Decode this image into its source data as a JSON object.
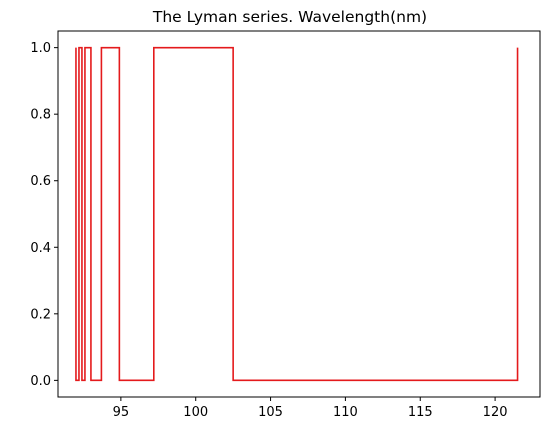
{
  "chart_data": {
    "type": "line",
    "title": "The Lyman series. Wavelength(nm)",
    "xlabel": "",
    "ylabel": "",
    "xlim": [
      90.8,
      123.0
    ],
    "ylim": [
      -0.05,
      1.05
    ],
    "x_ticks": [
      95,
      100,
      105,
      110,
      115,
      120
    ],
    "y_ticks": [
      0.0,
      0.2,
      0.4,
      0.6,
      0.8,
      1.0
    ],
    "x_tick_labels": [
      "95",
      "100",
      "105",
      "110",
      "115",
      "120"
    ],
    "y_tick_labels": [
      "0.0",
      "0.2",
      "0.4",
      "0.6",
      "0.8",
      "1.0"
    ],
    "grid": false,
    "legend": "none",
    "series": [
      {
        "x": [
          92.0,
          92.0,
          92.2,
          92.2,
          92.4,
          92.4,
          92.6,
          92.6,
          93.0,
          93.0,
          93.7,
          93.7,
          94.9,
          94.9,
          97.2,
          97.2,
          102.5,
          102.5,
          121.5,
          121.5
        ],
        "y": [
          1,
          0,
          0,
          1,
          1,
          0,
          0,
          1,
          1,
          0,
          0,
          1,
          1,
          0,
          0,
          1,
          1,
          0,
          0,
          1
        ],
        "color": "#e41a1c"
      }
    ],
    "spectral_lines_nm": [
      121.5,
      102.5,
      97.2,
      94.9,
      93.7,
      93.0,
      92.6,
      92.4,
      92.2,
      92.0
    ]
  }
}
